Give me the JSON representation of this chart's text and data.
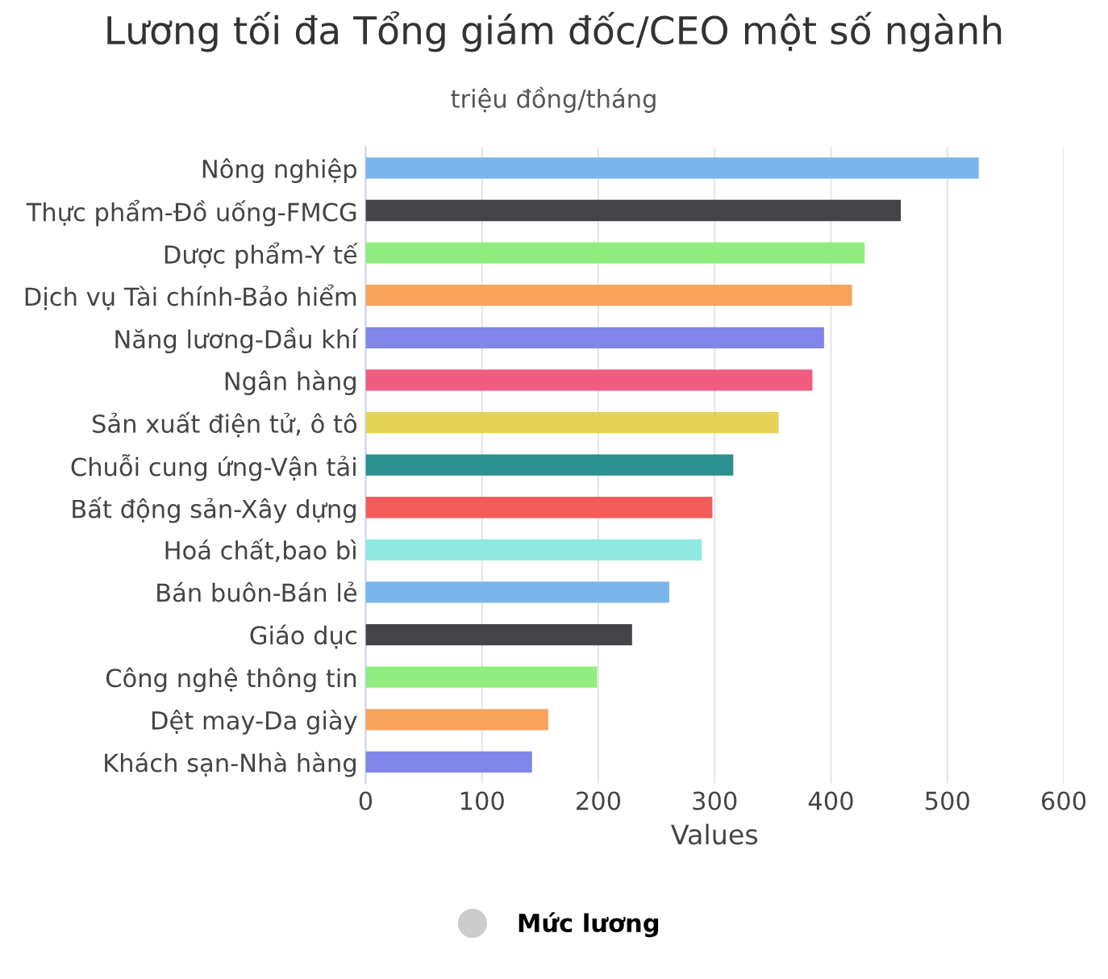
{
  "chart_data": {
    "type": "bar",
    "orientation": "horizontal",
    "title": "Lương tối đa Tổng giám đốc/CEO một số ngành",
    "subtitle": "triệu đồng/tháng",
    "xlabel": "Values",
    "categories": [
      "Nông nghiệp",
      "Thực phẩm-Đồ uống-FMCG",
      "Dược phẩm-Y tế",
      "Dịch vụ Tài chính-Bảo hiểm",
      "Năng lương-Dầu khí",
      "Ngân hàng",
      "Sản xuất điện tử, ô tô",
      "Chuỗi cung ứng-Vận tải",
      "Bất động sản-Xây dựng",
      "Hoá chất,bao bì",
      "Bán buôn-Bán lẻ",
      "Giáo dục",
      "Công nghệ thông tin",
      "Dệt may-Da giày",
      "Khách sạn-Nhà hàng"
    ],
    "series": [
      {
        "name": "Mức lương",
        "color": "#cccccc",
        "values": [
          527,
          460,
          429,
          418,
          394,
          384,
          355,
          316,
          298,
          289,
          261,
          229,
          199,
          157,
          143
        ],
        "colors": [
          "#7cb5ec",
          "#434348",
          "#90ed7d",
          "#f7a35c",
          "#8085e9",
          "#f15c80",
          "#e4d354",
          "#2b908f",
          "#f45b5b",
          "#91e8e1",
          "#7cb5ec",
          "#434348",
          "#90ed7d",
          "#f7a35c",
          "#8085e9"
        ]
      }
    ],
    "xlim": [
      0,
      600
    ],
    "xticks": [
      0,
      100,
      200,
      300,
      400,
      500,
      600
    ],
    "grid": "x",
    "legend": "bottom"
  }
}
